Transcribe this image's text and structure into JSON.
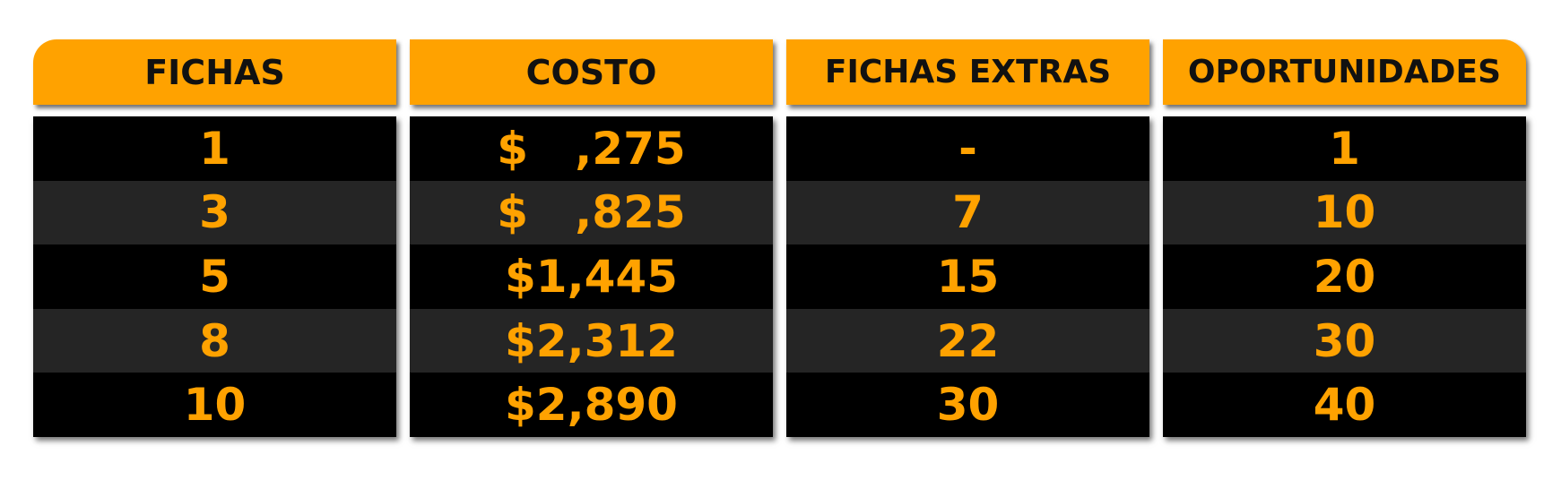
{
  "colors": {
    "accent": "#ffa200",
    "header_text": "#111111",
    "row_dark": "#000000",
    "row_alt": "#252525"
  },
  "table": {
    "headers": [
      "FICHAS",
      "COSTO",
      "FICHAS EXTRAS",
      "OPORTUNIDADES"
    ],
    "rows": [
      [
        "1",
        "$   ,275",
        "-",
        "1"
      ],
      [
        "3",
        "$   ,825",
        "7",
        "10"
      ],
      [
        "5",
        "$1,445",
        "15",
        "20"
      ],
      [
        "8",
        "$2,312",
        "22",
        "30"
      ],
      [
        "10",
        "$2,890",
        "30",
        "40"
      ]
    ]
  }
}
